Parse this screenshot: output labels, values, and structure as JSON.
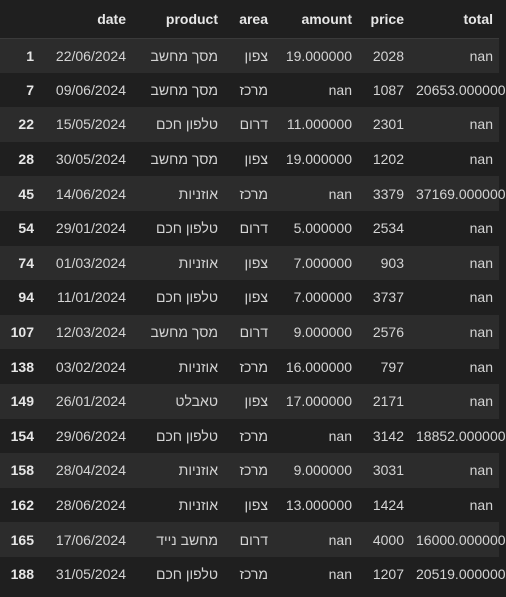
{
  "table": {
    "columns": [
      "",
      "date",
      "product",
      "area",
      "amount",
      "price",
      "total"
    ],
    "rows": [
      {
        "index": "1",
        "date": "22/06/2024",
        "product": "מסך מחשב",
        "area": "צפון",
        "amount": "19.000000",
        "price": "2028",
        "total": "nan"
      },
      {
        "index": "7",
        "date": "09/06/2024",
        "product": "מסך מחשב",
        "area": "מרכז",
        "amount": "nan",
        "price": "1087",
        "total": "20653.000000"
      },
      {
        "index": "22",
        "date": "15/05/2024",
        "product": "טלפון חכם",
        "area": "דרום",
        "amount": "11.000000",
        "price": "2301",
        "total": "nan"
      },
      {
        "index": "28",
        "date": "30/05/2024",
        "product": "מסך מחשב",
        "area": "צפון",
        "amount": "19.000000",
        "price": "1202",
        "total": "nan"
      },
      {
        "index": "45",
        "date": "14/06/2024",
        "product": "אוזניות",
        "area": "מרכז",
        "amount": "nan",
        "price": "3379",
        "total": "37169.000000"
      },
      {
        "index": "54",
        "date": "29/01/2024",
        "product": "טלפון חכם",
        "area": "דרום",
        "amount": "5.000000",
        "price": "2534",
        "total": "nan"
      },
      {
        "index": "74",
        "date": "01/03/2024",
        "product": "אוזניות",
        "area": "צפון",
        "amount": "7.000000",
        "price": "903",
        "total": "nan"
      },
      {
        "index": "94",
        "date": "11/01/2024",
        "product": "טלפון חכם",
        "area": "צפון",
        "amount": "7.000000",
        "price": "3737",
        "total": "nan"
      },
      {
        "index": "107",
        "date": "12/03/2024",
        "product": "מסך מחשב",
        "area": "דרום",
        "amount": "9.000000",
        "price": "2576",
        "total": "nan"
      },
      {
        "index": "138",
        "date": "03/02/2024",
        "product": "אוזניות",
        "area": "מרכז",
        "amount": "16.000000",
        "price": "797",
        "total": "nan"
      },
      {
        "index": "149",
        "date": "26/01/2024",
        "product": "טאבלט",
        "area": "צפון",
        "amount": "17.000000",
        "price": "2171",
        "total": "nan"
      },
      {
        "index": "154",
        "date": "29/06/2024",
        "product": "טלפון חכם",
        "area": "מרכז",
        "amount": "nan",
        "price": "3142",
        "total": "18852.000000"
      },
      {
        "index": "158",
        "date": "28/04/2024",
        "product": "אוזניות",
        "area": "מרכז",
        "amount": "9.000000",
        "price": "3031",
        "total": "nan"
      },
      {
        "index": "162",
        "date": "28/06/2024",
        "product": "אוזניות",
        "area": "צפון",
        "amount": "13.000000",
        "price": "1424",
        "total": "nan"
      },
      {
        "index": "165",
        "date": "17/06/2024",
        "product": "מחשב נייד",
        "area": "דרום",
        "amount": "nan",
        "price": "4000",
        "total": "16000.000000"
      },
      {
        "index": "188",
        "date": "31/05/2024",
        "product": "טלפון חכם",
        "area": "מרכז",
        "amount": "nan",
        "price": "1207",
        "total": "20519.000000"
      }
    ]
  },
  "colors": {
    "background": "#1f1f1f",
    "row_stripe": "#2c2c2c",
    "text": "#d4d4d4",
    "header_text": "#e6e6e6"
  }
}
